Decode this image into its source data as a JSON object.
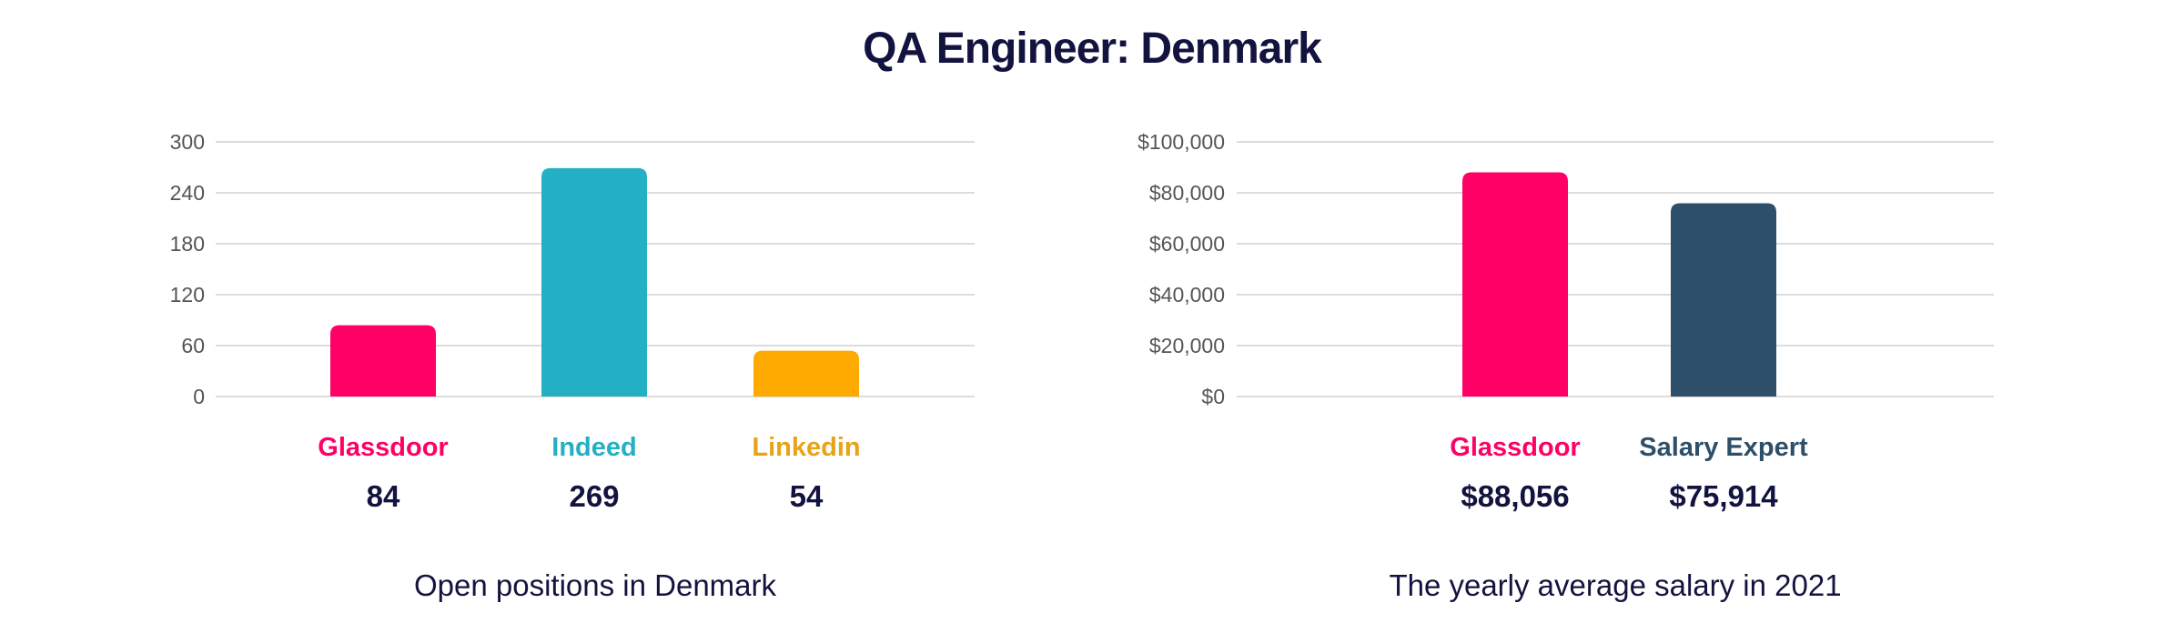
{
  "title": "QA Engineer: Denmark",
  "chart_data": [
    {
      "type": "bar",
      "title": "",
      "caption": "Open positions in Denmark",
      "categories": [
        "Glassdoor",
        "Indeed",
        "Linkedin"
      ],
      "values": [
        84,
        269,
        54
      ],
      "value_labels": [
        "84",
        "269",
        "54"
      ],
      "colors": [
        "#ff0066",
        "#24b0c4",
        "#ffaa00"
      ],
      "label_colors": [
        "#ff0066",
        "#24b0c4",
        "#e8a317"
      ],
      "ylim": [
        0,
        300
      ],
      "yticks": [
        0,
        60,
        120,
        180,
        240,
        300
      ],
      "ytick_labels": [
        "0",
        "60",
        "120",
        "180",
        "240",
        "300"
      ],
      "grid": true
    },
    {
      "type": "bar",
      "title": "",
      "caption": "The yearly average salary in 2021",
      "categories": [
        "Glassdoor",
        "Salary Expert"
      ],
      "values": [
        88056,
        75914
      ],
      "value_labels": [
        "$88,056",
        "$75,914"
      ],
      "colors": [
        "#ff0066",
        "#2d4f69"
      ],
      "label_colors": [
        "#ff0066",
        "#2d4f69"
      ],
      "ylim": [
        0,
        100000
      ],
      "yticks": [
        0,
        20000,
        40000,
        60000,
        80000,
        100000
      ],
      "ytick_labels": [
        "$0",
        "$20,000",
        "$40,000",
        "$60,000",
        "$80,000",
        "$100,000"
      ],
      "grid": true
    }
  ]
}
